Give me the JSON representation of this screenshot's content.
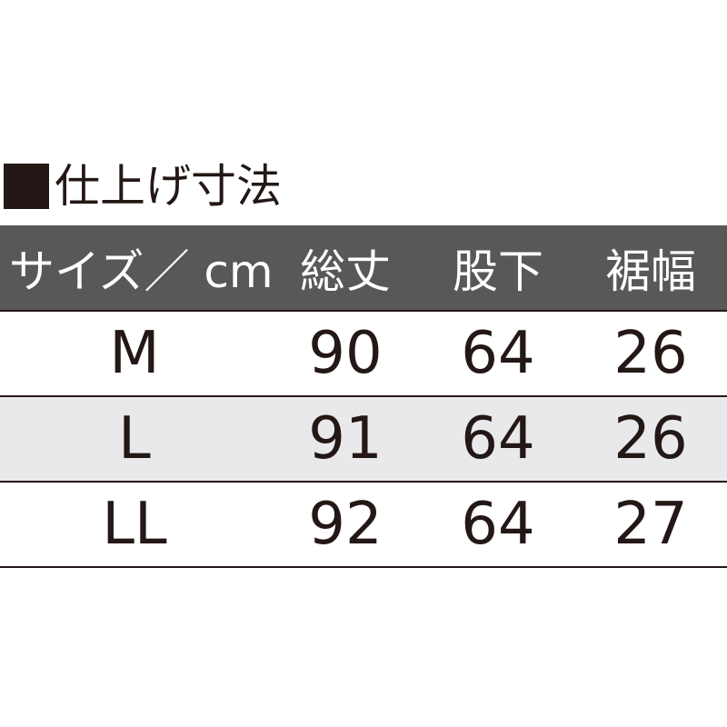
{
  "title": "仕上げ寸法",
  "header": [
    "サイズ／ cm",
    "総丈",
    "股下",
    "裾幅"
  ],
  "rows": [
    [
      "M",
      "90",
      "64",
      "26"
    ],
    [
      "L",
      "91",
      "64",
      "26"
    ],
    [
      "LL",
      "92",
      "64",
      "27"
    ]
  ],
  "colors": {
    "header_bg": "#595757",
    "stripe_bg": "#e9e9eb",
    "text": "#231815"
  }
}
